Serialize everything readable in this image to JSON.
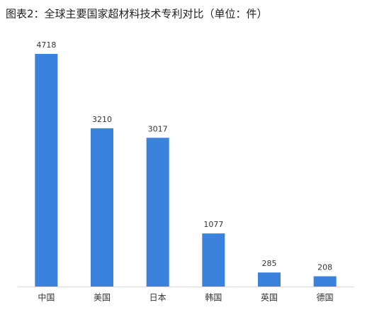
{
  "chart_data": {
    "type": "bar",
    "title": "图表2：全球主要国家超材料技术专利对比（单位：件）",
    "categories": [
      "中国",
      "美国",
      "日本",
      "韩国",
      "英国",
      "德国"
    ],
    "values": [
      4718,
      3210,
      3017,
      1077,
      285,
      208
    ],
    "color": "#3b82dc"
  }
}
